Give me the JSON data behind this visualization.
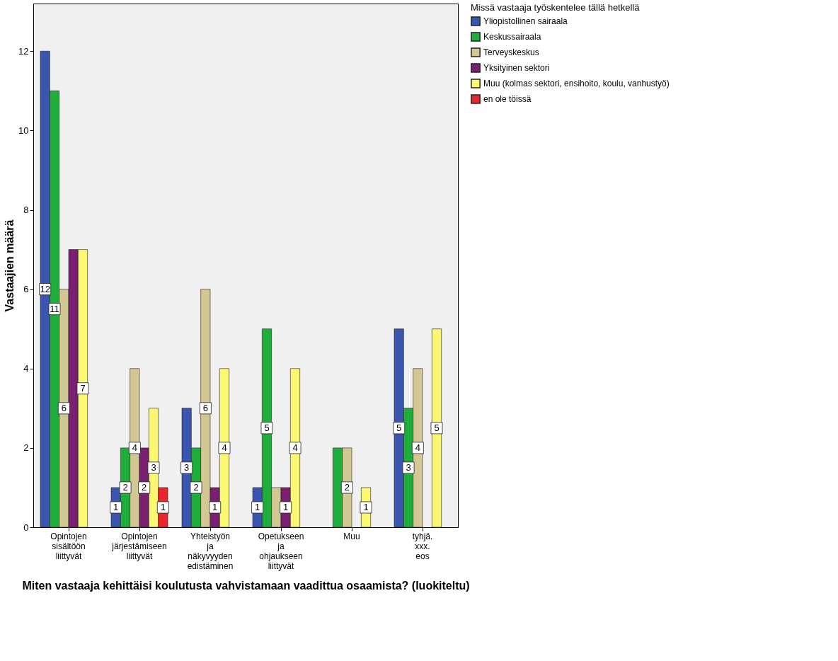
{
  "chart_data": {
    "type": "bar",
    "xlabel": "Miten vastaaja kehittäisi koulutusta vahvistamaan vaadittua osaamista? (luokiteltu)",
    "ylabel": "Vastaajien määrä",
    "legend_title": "Missä vastaaja työskentelee tällä hetkellä",
    "legend": "right",
    "grid": false,
    "categories": [
      "Opintojen sisältöön liittyvät",
      "Opintojen järjestämiseen liittyvät",
      "Yhteistyön ja näkyvyyden edistäminen",
      "Opetukseen ja ohjaukseen liittyvät",
      "Muu",
      "tyhjä. xxx. eos"
    ],
    "ylim": [
      0,
      13.2
    ],
    "yticks": [
      0,
      2,
      4,
      6,
      8,
      10,
      12
    ],
    "series": [
      {
        "name": "Yliopistollinen sairaala",
        "color": "#3a56b0",
        "values": [
          12,
          1,
          3,
          1,
          null,
          5
        ],
        "value_labels": [
          "12",
          "1",
          "3",
          "1",
          null,
          "5"
        ]
      },
      {
        "name": "Keskussairaala",
        "color": "#1fae3c",
        "values": [
          11,
          2,
          2,
          5,
          2,
          3
        ],
        "value_labels": [
          "11",
          "2",
          "2",
          "5",
          null,
          "3"
        ]
      },
      {
        "name": "Terveyskeskus",
        "color": "#d3c894",
        "values": [
          6,
          4,
          6,
          1,
          2,
          4
        ],
        "value_labels": [
          "6",
          "4",
          "6",
          null,
          "2",
          "4"
        ]
      },
      {
        "name": "Yksityinen sektori",
        "color": "#7b1f73",
        "values": [
          7,
          2,
          1,
          1,
          null,
          null
        ],
        "value_labels": [
          null,
          "2",
          "1",
          "1",
          null,
          null
        ]
      },
      {
        "name": "Muu (kolmas sektori, ensihoito, koulu, vanhustyö)",
        "color": "#fbf772",
        "values": [
          7,
          3,
          4,
          4,
          1,
          5
        ],
        "value_labels": [
          "7",
          "3",
          "4",
          "4",
          "1",
          "5"
        ]
      },
      {
        "name": "en ole töissä",
        "color": "#e8262f",
        "values": [
          null,
          1,
          null,
          null,
          null,
          null
        ],
        "value_labels": [
          null,
          "1",
          null,
          null,
          null,
          null
        ]
      }
    ]
  }
}
